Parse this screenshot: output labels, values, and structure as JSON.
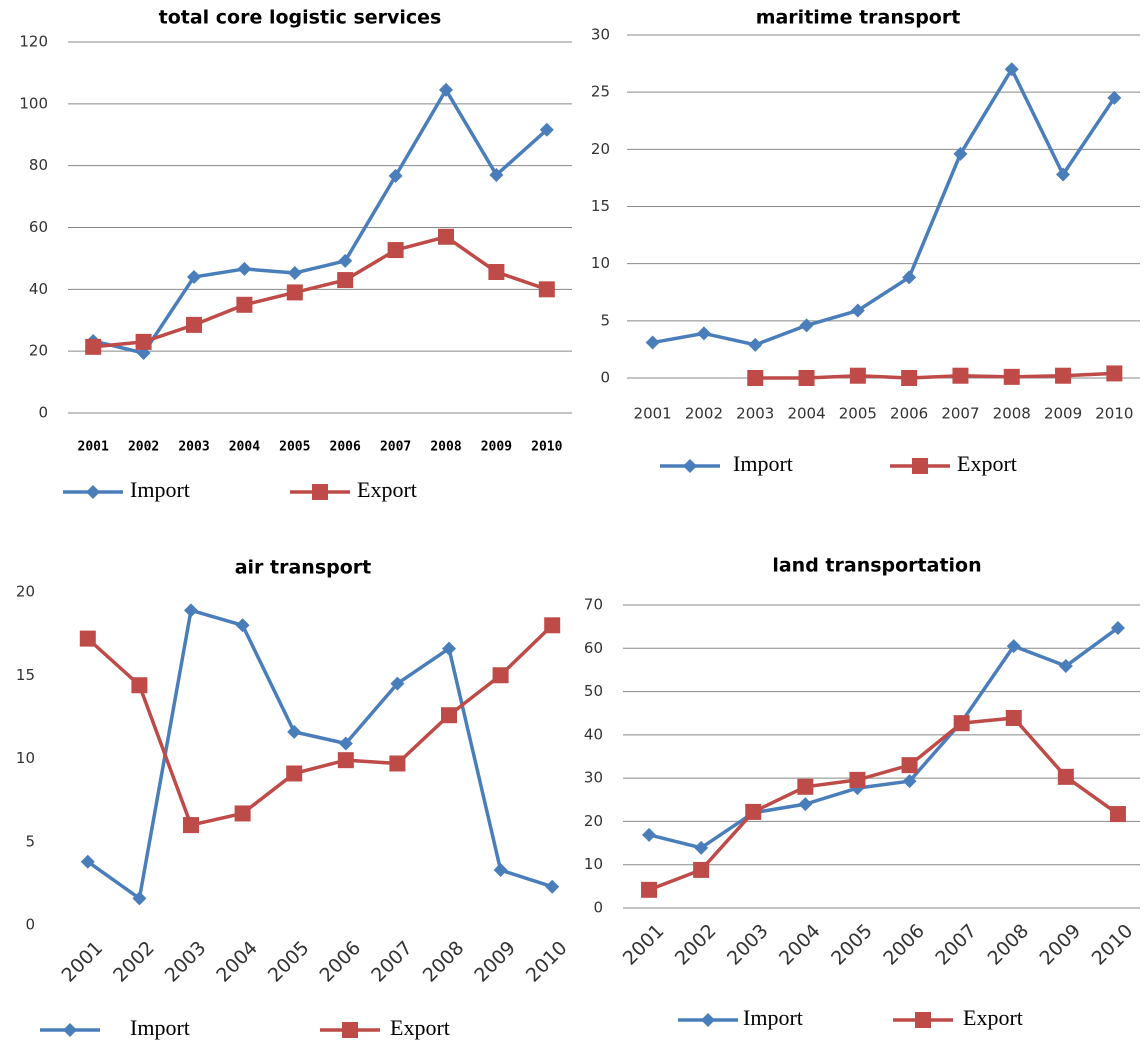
{
  "chart_data": [
    {
      "type": "line",
      "title": "total core logistic services",
      "categories": [
        "2001",
        "2002",
        "2003",
        "2004",
        "2005",
        "2006",
        "2007",
        "2008",
        "2009",
        "2010"
      ],
      "series": [
        {
          "name": "Import",
          "color": "#4a7ebb",
          "marker": "diamond",
          "values": [
            23.3,
            19.4,
            44,
            46.6,
            45.3,
            49.2,
            76.7,
            104.5,
            77,
            91.6
          ]
        },
        {
          "name": "Export",
          "color": "#be4b48",
          "marker": "square",
          "values": [
            21.4,
            23,
            28.5,
            35,
            39,
            43,
            52.7,
            57,
            45.6,
            40
          ]
        }
      ],
      "ylim": [
        0,
        120
      ],
      "yticks": [
        0,
        20,
        40,
        60,
        80,
        100,
        120
      ],
      "grid": true
    },
    {
      "type": "line",
      "title": "maritime transport",
      "categories": [
        "2001",
        "2002",
        "2003",
        "2004",
        "2005",
        "2006",
        "2007",
        "2008",
        "2009",
        "2010"
      ],
      "series": [
        {
          "name": "Import",
          "color": "#4a7ebb",
          "marker": "diamond",
          "values": [
            3.1,
            3.9,
            2.9,
            4.6,
            5.9,
            8.8,
            19.6,
            27,
            17.8,
            24.5
          ]
        },
        {
          "name": "Export",
          "color": "#be4b48",
          "marker": "square",
          "values": [
            null,
            null,
            0,
            0,
            0.2,
            0,
            0.2,
            0.1,
            0.2,
            0.4
          ]
        }
      ],
      "ylim": [
        0,
        30
      ],
      "yticks": [
        0,
        5,
        10,
        15,
        20,
        25,
        30
      ],
      "grid": true
    },
    {
      "type": "line",
      "title": "air transport",
      "categories": [
        "2001",
        "2002",
        "2003",
        "2004",
        "2005",
        "2006",
        "2007",
        "2008",
        "2009",
        "2010"
      ],
      "series": [
        {
          "name": "Import",
          "color": "#4a7ebb",
          "marker": "diamond",
          "values": [
            3.8,
            1.6,
            18.9,
            18,
            11.6,
            10.9,
            14.5,
            16.6,
            3.3,
            2.3
          ]
        },
        {
          "name": "Export",
          "color": "#be4b48",
          "marker": "square",
          "values": [
            17.2,
            14.4,
            6,
            6.7,
            9.1,
            9.9,
            9.7,
            12.6,
            15,
            18
          ]
        }
      ],
      "ylim": [
        0,
        20
      ],
      "yticks": [
        0,
        5,
        10,
        15,
        20
      ],
      "grid": false
    },
    {
      "type": "line",
      "title": "land transportation",
      "categories": [
        "2001",
        "2002",
        "2003",
        "2004",
        "2005",
        "2006",
        "2007",
        "2008",
        "2009",
        "2010"
      ],
      "series": [
        {
          "name": "Import",
          "color": "#4a7ebb",
          "marker": "diamond",
          "values": [
            16.9,
            13.9,
            22,
            24,
            27.7,
            29.3,
            43,
            60.5,
            55.9,
            64.7
          ]
        },
        {
          "name": "Export",
          "color": "#be4b48",
          "marker": "square",
          "values": [
            4.2,
            8.8,
            22.2,
            28,
            29.6,
            33,
            42.7,
            43.9,
            30.3,
            21.7
          ]
        }
      ],
      "ylim": [
        0,
        70
      ],
      "yticks": [
        0,
        10,
        20,
        30,
        40,
        50,
        60,
        70
      ],
      "grid": true
    }
  ]
}
